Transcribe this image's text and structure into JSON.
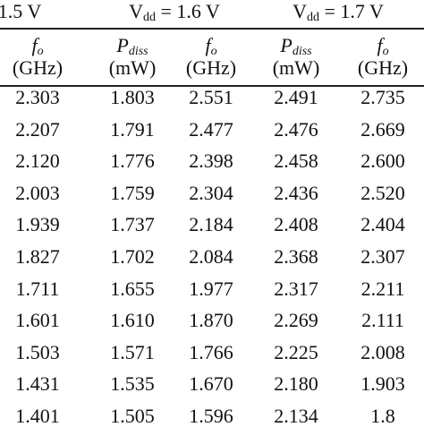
{
  "header": {
    "groups": [
      {
        "text": "1.5 V"
      },
      {
        "main": "V",
        "sub": "dd",
        "rest": " = 1.6 V"
      },
      {
        "main": "V",
        "sub": "dd",
        "rest": " = 1.7 V"
      }
    ]
  },
  "columns": [
    {
      "symbol": "f",
      "sub": "o",
      "unit": "(GHz)"
    },
    {
      "symbol": "P",
      "sub": "diss",
      "unit": "(mW)"
    },
    {
      "symbol": "f",
      "sub": "o",
      "unit": "(GHz)"
    },
    {
      "symbol": "P",
      "sub": "diss",
      "unit": "(mW)"
    },
    {
      "symbol": "f",
      "sub": "o",
      "unit": "(GHz)"
    }
  ],
  "table": {
    "rows": [
      [
        "2.303",
        "1.803",
        "2.551",
        "2.491",
        "2.735"
      ],
      [
        "2.207",
        "1.791",
        "2.477",
        "2.476",
        "2.669"
      ],
      [
        "2.120",
        "1.776",
        "2.398",
        "2.458",
        "2.600"
      ],
      [
        "2.003",
        "1.759",
        "2.304",
        "2.436",
        "2.520"
      ],
      [
        "1.939",
        "1.737",
        "2.184",
        "2.408",
        "2.404"
      ],
      [
        "1.827",
        "1.702",
        "2.084",
        "2.368",
        "2.307"
      ],
      [
        "1.711",
        "1.655",
        "1.977",
        "2.317",
        "2.211"
      ],
      [
        "1.601",
        "1.610",
        "1.870",
        "2.269",
        "2.111"
      ],
      [
        "1.503",
        "1.571",
        "1.766",
        "2.225",
        "2.008"
      ],
      [
        "1.431",
        "1.535",
        "1.670",
        "2.180",
        "1.903"
      ],
      [
        "1.401",
        "1.505",
        "1.596",
        "2.134",
        "1.8"
      ]
    ]
  }
}
